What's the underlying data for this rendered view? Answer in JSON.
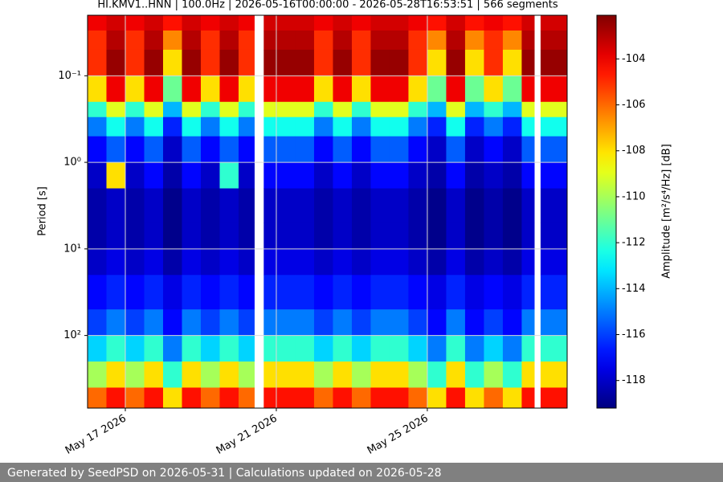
{
  "chart_data": {
    "type": "heatmap",
    "title": "HI.KMV1..HNN | 100.0Hz | 2026-05-16T00:00:00 - 2026-05-28T16:53:51 | 566 segments",
    "y_label": "Period [s]",
    "colorbar_label": "Amplitude [m²/s⁴/Hz] [dB]",
    "colormap": "jet",
    "y_log": true,
    "y_inverted": true,
    "grid": true,
    "xlim": [
      "2026-05-16T00:00:00",
      "2026-05-28T16:53:51"
    ],
    "xticks": [
      {
        "value": "2026-05-17",
        "label": "May 17 2026"
      },
      {
        "value": "2026-05-21",
        "label": "May 21 2026"
      },
      {
        "value": "2026-05-25",
        "label": "May 25 2026"
      }
    ],
    "ylim": [
      0.02,
      690
    ],
    "yticks": [
      {
        "value": 0.1,
        "label": "10⁻¹"
      },
      {
        "value": 1,
        "label": "10⁰"
      },
      {
        "value": 10,
        "label": "10¹"
      },
      {
        "value": 100,
        "label": "10²"
      }
    ],
    "clim": [
      -119.2,
      -102.1
    ],
    "cticks": [
      -104,
      -106,
      -108,
      -110,
      -112,
      -114,
      -116,
      -118
    ],
    "time_edges": [
      "2026-05-16T00:00:00",
      "2026-05-16T12:00:00",
      "2026-05-17T00:00:00",
      "2026-05-17T12:00:00",
      "2026-05-18T00:00:00",
      "2026-05-18T12:00:00",
      "2026-05-19T00:00:00",
      "2026-05-19T12:00:00",
      "2026-05-20T00:00:00",
      "2026-05-20T10:00:00",
      "2026-05-20T16:00:00",
      "2026-05-21T00:00:00",
      "2026-05-21T12:00:00",
      "2026-05-22T00:00:00",
      "2026-05-22T12:00:00",
      "2026-05-23T00:00:00",
      "2026-05-23T12:00:00",
      "2026-05-24T00:00:00",
      "2026-05-24T12:00:00",
      "2026-05-25T00:00:00",
      "2026-05-25T12:00:00",
      "2026-05-26T00:00:00",
      "2026-05-26T12:00:00",
      "2026-05-27T00:00:00",
      "2026-05-27T12:00:00",
      "2026-05-27T20:00:00",
      "2026-05-28T00:00:00",
      "2026-05-28T16:53:51"
    ],
    "period_edges": [
      0.02,
      0.03,
      0.05,
      0.1,
      0.2,
      0.3,
      0.5,
      1,
      2,
      5,
      10,
      20,
      50,
      100,
      200,
      400,
      690
    ],
    "values": [
      [
        -104,
        -103.5,
        -104,
        -103.5,
        -104.5,
        -103.5,
        -104,
        -103.5,
        -104,
        null,
        -103.5,
        -103.5,
        -103.5,
        -104,
        -103.5,
        -104,
        -103.5,
        -103.5,
        -104,
        -104.5,
        -103.5,
        -104.5,
        -104,
        -104.5,
        -103.5,
        null,
        -103.5
      ],
      [
        -105,
        -103,
        -105,
        -103,
        -106.5,
        -103,
        -105,
        -103,
        -105,
        null,
        -103,
        -103,
        -103,
        -105,
        -103,
        -105,
        -103,
        -103,
        -105,
        -106.5,
        -103,
        -106.5,
        -105,
        -106.5,
        -103,
        null,
        -103
      ],
      [
        -105,
        -102.5,
        -105,
        -102.5,
        -108,
        -102.5,
        -105,
        -102.5,
        -105,
        null,
        -102.5,
        -102.5,
        -102.5,
        -105,
        -102.5,
        -105,
        -102.5,
        -102.5,
        -105,
        -108,
        -102.5,
        -108,
        -105,
        -108,
        -102.5,
        null,
        -102.5
      ],
      [
        -108,
        -104,
        -108,
        -104,
        -111,
        -104,
        -108,
        -104,
        -108,
        null,
        -104,
        -104,
        -104,
        -108,
        -104,
        -108,
        -104,
        -104,
        -108,
        -111,
        -104,
        -111,
        -108,
        -111,
        -104,
        null,
        -104
      ],
      [
        -112,
        -109,
        -112,
        -109,
        -114,
        -109,
        -112,
        -109,
        -112,
        null,
        -109,
        -109,
        -109,
        -112,
        -109,
        -112,
        -109,
        -109,
        -112,
        -114,
        -109,
        -114,
        -112,
        -114,
        -109,
        null,
        -109
      ],
      [
        -115,
        -112.5,
        -115,
        -112.5,
        -116.5,
        -112.5,
        -115,
        -112.5,
        -115,
        null,
        -112.5,
        -112.5,
        -112.5,
        -115,
        -112.5,
        -115,
        -112.5,
        -112.5,
        -115,
        -116.5,
        -112.5,
        -116.5,
        -115,
        -116.5,
        -112.5,
        null,
        -112.5
      ],
      [
        -117,
        -115.5,
        -117,
        -115.5,
        -118,
        -115.5,
        -117,
        -115.5,
        -117,
        null,
        -115.5,
        -115.5,
        -115.5,
        -117,
        -115.5,
        -117,
        -115.5,
        -115.5,
        -117,
        -118,
        -115.5,
        -118,
        -117,
        -118,
        -115.5,
        null,
        -115.5
      ],
      [
        -118,
        -108,
        -118,
        -117,
        -118.5,
        -117,
        -118,
        -112,
        -118,
        null,
        -117,
        -117,
        -117,
        -118,
        -117,
        -118,
        -117,
        -117,
        -118,
        -118.5,
        -117,
        -118.5,
        -118,
        -118.5,
        -117,
        null,
        -117
      ],
      [
        -118.5,
        -118,
        -118.5,
        -118,
        -119,
        -118,
        -118.5,
        -118,
        -118.5,
        null,
        -118,
        -118,
        -118,
        -118.5,
        -118,
        -118.5,
        -118,
        -118,
        -118.5,
        -119,
        -118,
        -119,
        -118.5,
        -119,
        -118,
        null,
        -118
      ],
      [
        -118.5,
        -118,
        -118.5,
        -118,
        -119,
        -118,
        -118.5,
        -118,
        -118.5,
        null,
        -118,
        -118,
        -118,
        -118.5,
        -118,
        -118.5,
        -118,
        -118,
        -118.5,
        -119,
        -118,
        -119,
        -118.5,
        -119,
        -118,
        null,
        -118
      ],
      [
        -118,
        -117.5,
        -118,
        -117.5,
        -118.5,
        -117.5,
        -118,
        -117.5,
        -118,
        null,
        -117.5,
        -117.5,
        -117.5,
        -118,
        -117.5,
        -118,
        -117.5,
        -117.5,
        -118,
        -118.5,
        -117.5,
        -118.5,
        -118,
        -118.5,
        -117.5,
        null,
        -117.5
      ],
      [
        -117,
        -116.5,
        -117,
        -116.5,
        -117.5,
        -116.5,
        -117,
        -116.5,
        -117,
        null,
        -116.5,
        -116.5,
        -116.5,
        -117,
        -116.5,
        -117,
        -116.5,
        -116.5,
        -117,
        -117.5,
        -116.5,
        -117.5,
        -117,
        -117.5,
        -116.5,
        null,
        -116.5
      ],
      [
        -116,
        -115,
        -116,
        -115,
        -117,
        -115,
        -116,
        -115,
        -116,
        null,
        -115,
        -115,
        -115,
        -116,
        -115,
        -116,
        -115,
        -115,
        -116,
        -117,
        -115,
        -117,
        -116,
        -117,
        -115,
        null,
        -115
      ],
      [
        -113.5,
        -112,
        -113.5,
        -112,
        -115,
        -112,
        -113.5,
        -112,
        -113.5,
        null,
        -112,
        -112,
        -112,
        -113.5,
        -112,
        -113.5,
        -112,
        -112,
        -113.5,
        -115,
        -112,
        -115,
        -113.5,
        -115,
        -112,
        null,
        -112
      ],
      [
        -110,
        -108,
        -110,
        -108,
        -112,
        -108,
        -110,
        -108,
        -110,
        null,
        -108,
        -108,
        -108,
        -110,
        -108,
        -110,
        -108,
        -108,
        -110,
        -112,
        -108,
        -112,
        -110,
        -112,
        -108,
        null,
        -108
      ],
      [
        -106,
        -104.5,
        -106,
        -104.5,
        -108,
        -104.5,
        -106,
        -104.5,
        -106,
        null,
        -104.5,
        -104.5,
        -104.5,
        -106,
        -104.5,
        -106,
        -104.5,
        -104.5,
        -106,
        -108,
        -104.5,
        -108,
        -106,
        -108,
        -104.5,
        null,
        -104.5
      ]
    ]
  },
  "footer": "Generated by SeedPSD on 2026-05-31 | Calculations updated on 2026-05-28"
}
